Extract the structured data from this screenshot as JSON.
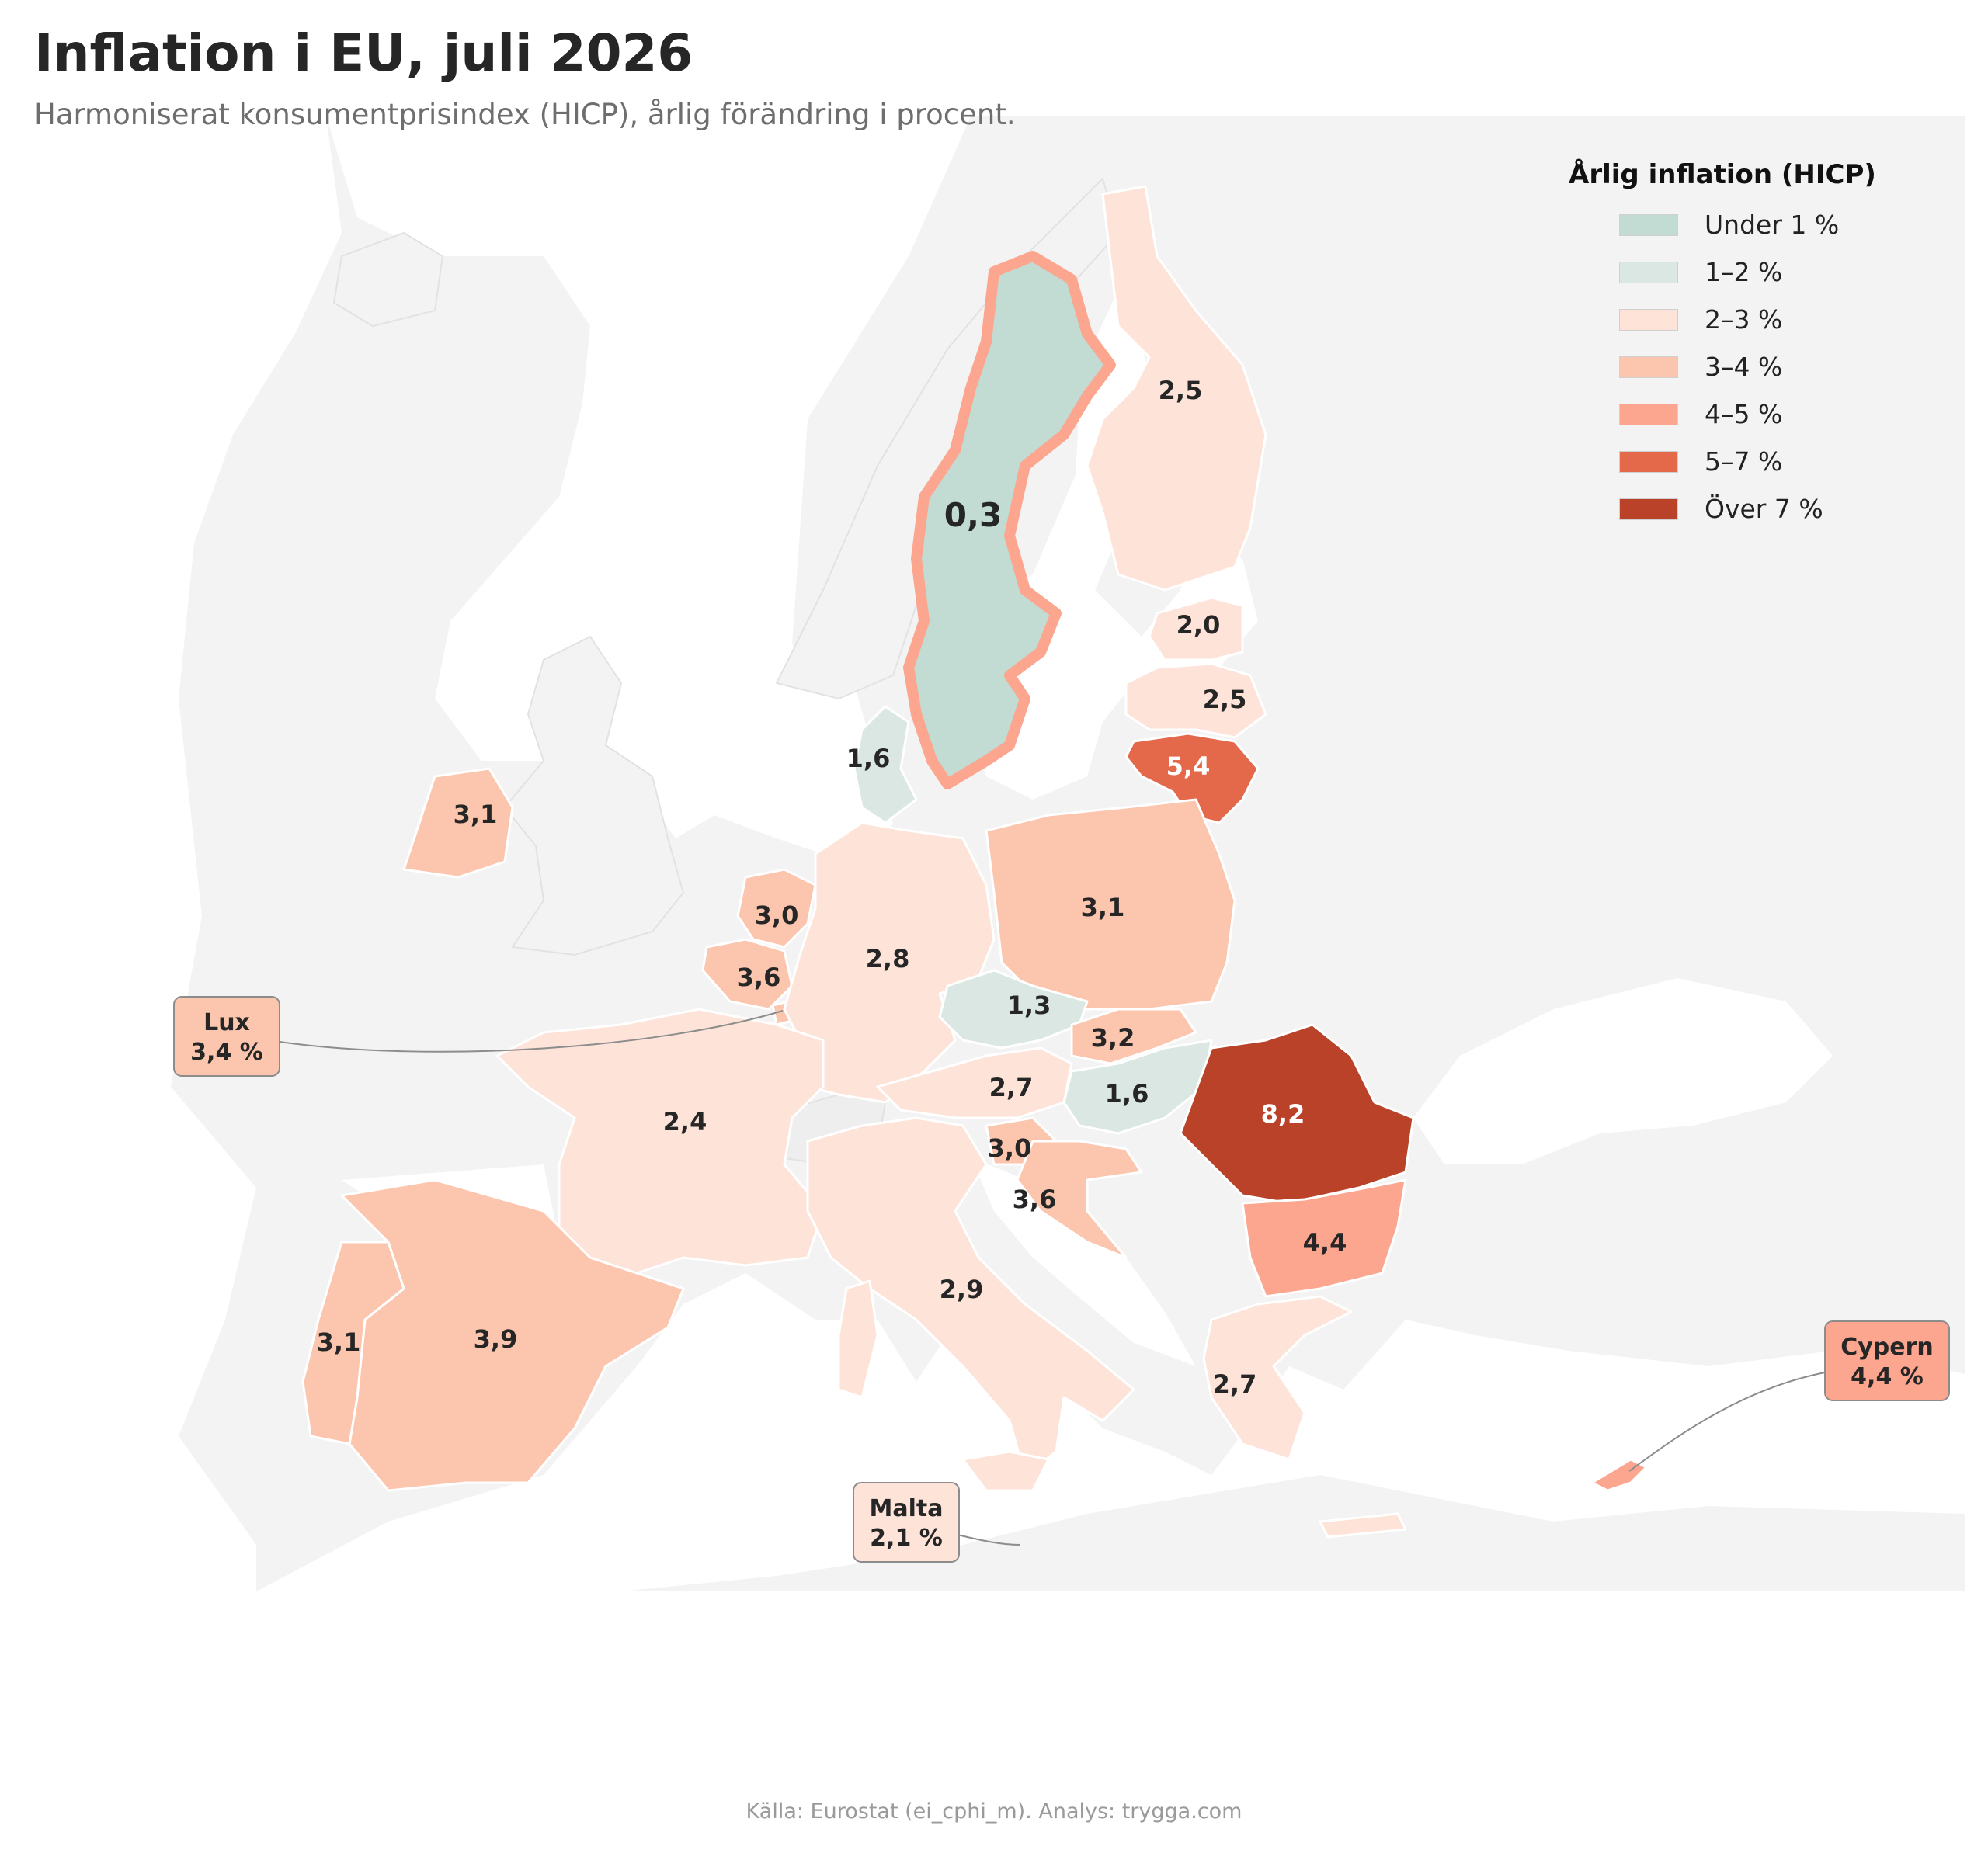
{
  "title": "Inflation i EU, juli 2026",
  "subtitle": "Harmoniserat konsumentprisindex (HICP), årlig förändring i procent.",
  "source": "Källa: Eurostat (ei_cphi_m). Analys: trygga.com",
  "legend": {
    "title": "Årlig inflation (HICP)",
    "items": [
      {
        "label": "Under 1 %",
        "color": "#c2dbd3"
      },
      {
        "label": "1–2 %",
        "color": "#dbe7e2"
      },
      {
        "label": "2–3 %",
        "color": "#fde3d8"
      },
      {
        "label": "3–4 %",
        "color": "#fcc5ae"
      },
      {
        "label": "4–5 %",
        "color": "#fca58f"
      },
      {
        "label": "5–7 %",
        "color": "#e3694a"
      },
      {
        "label": "Över 7 %",
        "color": "#b94229"
      }
    ]
  },
  "colors": {
    "background_land": "#f3f3f3",
    "sea": "#ffffff",
    "border": "#ffffff",
    "highlight_outline": "#fca58f"
  },
  "regions": [
    {
      "name": "sweden",
      "value": "0,3"
    },
    {
      "name": "finland",
      "value": "2,5"
    },
    {
      "name": "estonia",
      "value": "2,0"
    },
    {
      "name": "latvia",
      "value": "2,5"
    },
    {
      "name": "lithuania",
      "value": "5,4"
    },
    {
      "name": "denmark",
      "value": "1,6"
    },
    {
      "name": "ireland",
      "value": "3,1"
    },
    {
      "name": "netherlands",
      "value": "3,0"
    },
    {
      "name": "belgium",
      "value": "3,6"
    },
    {
      "name": "germany",
      "value": "2,8"
    },
    {
      "name": "poland",
      "value": "3,1"
    },
    {
      "name": "czechia",
      "value": "1,3"
    },
    {
      "name": "slovakia",
      "value": "3,2"
    },
    {
      "name": "austria",
      "value": "2,7"
    },
    {
      "name": "hungary",
      "value": "1,6"
    },
    {
      "name": "romania",
      "value": "8,2"
    },
    {
      "name": "slovenia",
      "value": "3,0"
    },
    {
      "name": "croatia",
      "value": "3,6"
    },
    {
      "name": "bulgaria",
      "value": "4,4"
    },
    {
      "name": "france",
      "value": "2,4"
    },
    {
      "name": "italy",
      "value": "2,9"
    },
    {
      "name": "spain",
      "value": "3,9"
    },
    {
      "name": "portugal",
      "value": "3,1"
    },
    {
      "name": "greece",
      "value": "2,7"
    },
    {
      "name": "cyprus",
      "value": "4,4"
    },
    {
      "name": "malta",
      "value": "2,1"
    },
    {
      "name": "luxembourg",
      "value": "3,4"
    }
  ],
  "callouts": {
    "lux": {
      "name": "Lux",
      "value": "3,4 %"
    },
    "malta": {
      "name": "Malta",
      "value": "2,1 %"
    },
    "cyprus": {
      "name": "Cypern",
      "value": "4,4 %"
    }
  }
}
